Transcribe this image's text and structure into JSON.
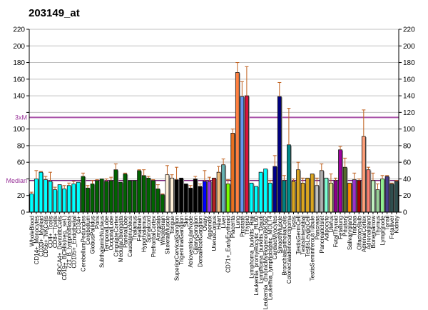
{
  "chart_data": {
    "type": "bar",
    "title": "203149_at",
    "ylim": [
      0,
      220
    ],
    "yticks": [
      0,
      20,
      40,
      60,
      80,
      100,
      120,
      140,
      160,
      180,
      200,
      220
    ],
    "grid": true,
    "reference_lines": [
      {
        "label": "Median",
        "value": 38,
        "color": "#660066"
      },
      {
        "label": "3xM",
        "value": 114,
        "color": "#aa55aa"
      }
    ],
    "categories": [
      "WholeBlood",
      "CD14+_Monocytes",
      "CD33+_Myeloid",
      "CD56+_NKCells",
      "CD4+_Tcells",
      "CD8+_Tcells",
      "BDCA4+_DentriticCells",
      "CD19+_BCells(neg._sel.)",
      "721_B_lymphoblasts",
      "CD105+_Endothelial",
      "CD34+",
      "CerebellumPeduncles",
      "Cerebellum",
      "GlobusPallidus",
      "Pons",
      "SubthalamicNucleus",
      "TemporalLobe",
      "OccipitalLobe",
      "CingulateCortex",
      "MedullaOblongata",
      "ParietalLobe",
      "Caudatenucleus",
      "Thalamus",
      "Fetalbrain",
      "Hypothalamus",
      "Spinalcord",
      "PrefrontalCortex",
      "Amygdala",
      "WholeBrain",
      "SkeletalMuscle",
      "Tongue",
      "SuperiorCervicalGanglion",
      "TrigeminalGanglion",
      "Skin",
      "AtrioventricularNode",
      "CiliaryGanglion",
      "DorsalRootGanglion",
      "Ovary",
      "Appendix",
      "UterusCorpus",
      "Heart",
      "Liver",
      "CD71+_EarlyErythroid",
      "Placenta",
      "Lung",
      "Prostate",
      "Thyroid",
      "Lymphoma_burkitts_Raji",
      "Leukemia_promyelocytic_HL60",
      "Lymphoma_burkitts_Daudi",
      "Leukemia_chronicMyelogenousK562",
      "Leukemia_lymphoblastic_MOLT4",
      "CardiacMyocytes",
      "SmoothMuscle",
      "BronchialEpithelialCells",
      "Colorectaladenocarcinoma",
      "Testis",
      "TestisGermCell",
      "TestisInterstitial",
      "TestisLeydigCell",
      "TestisSeminiferousTubule",
      "Pancreas",
      "PancreaticIslet",
      "Adipocyte",
      "Uterus",
      "FetalThyroid",
      "Fetallung",
      "Pituitary",
      "Salivarygland",
      "Trachea",
      "OlfactoryBulb",
      "AdrenalCortex",
      "Adrenalgland",
      "Bonemarrow",
      "Thymus",
      "Lymphnode",
      "Tonsil",
      "Fetalliver",
      "Kidney"
    ],
    "values": [
      22,
      40,
      48,
      39,
      37,
      27,
      33,
      28,
      32,
      34,
      36,
      43,
      29,
      34,
      38,
      40,
      37,
      38,
      51,
      36,
      46,
      38,
      38,
      50,
      44,
      41,
      38,
      28,
      21,
      45,
      41,
      39,
      41,
      34,
      29,
      40,
      31,
      37,
      37,
      41,
      48,
      57,
      34,
      95,
      168,
      139,
      140,
      35,
      31,
      48,
      52,
      35,
      55,
      139,
      38,
      81,
      37,
      51,
      35,
      41,
      46,
      32,
      50,
      41,
      35,
      38,
      75,
      54,
      35,
      39,
      38,
      91,
      51,
      38,
      27,
      40,
      43,
      34,
      37
    ],
    "errors": [
      2,
      10,
      1,
      4,
      11,
      3,
      0,
      4,
      3,
      3,
      0,
      4,
      3,
      4,
      1,
      0,
      3,
      4,
      7,
      0,
      1,
      0,
      0,
      1,
      7,
      2,
      1,
      5,
      1,
      11,
      4,
      15,
      0,
      0,
      3,
      3,
      3,
      13,
      5,
      0,
      7,
      7,
      5,
      5,
      12,
      18,
      35,
      0,
      0,
      0,
      0,
      3,
      13,
      17,
      6,
      44,
      3,
      9,
      6,
      0,
      0,
      9,
      8,
      0,
      11,
      3,
      4,
      11,
      0,
      8,
      2,
      32,
      3,
      9,
      7,
      4,
      1,
      1,
      1
    ],
    "colors": [
      "#00ffff",
      "#00ffff",
      "#00ffff",
      "#00ffff",
      "#00ffff",
      "#00ffff",
      "#00ffff",
      "#00ffff",
      "#00ffff",
      "#00ffff",
      "#00ffff",
      "#006400",
      "#006400",
      "#006400",
      "#006400",
      "#006400",
      "#006400",
      "#006400",
      "#006400",
      "#006400",
      "#006400",
      "#006400",
      "#006400",
      "#006400",
      "#006400",
      "#006400",
      "#006400",
      "#006400",
      "#006400",
      "#fff0d8",
      "#fff0d8",
      "#000000",
      "#000000",
      "#000000",
      "#000000",
      "#000000",
      "#000000",
      "#0000ff",
      "#9932ee",
      "#b22222",
      "#f0c080",
      "#66b2b2",
      "#7cfc00",
      "#e87020",
      "#ff8040",
      "#6495ed",
      "#dc143c",
      "#00ffff",
      "#00ffff",
      "#00ffff",
      "#00ffff",
      "#00ffff",
      "#00008b",
      "#000080",
      "#008080",
      "#008b8b",
      "#daa520",
      "#daa520",
      "#daa520",
      "#daa520",
      "#daa520",
      "#c0c0c0",
      "#b0b0b0",
      "#7fffd4",
      "#e0e080",
      "#8b008b",
      "#a000a0",
      "#556b2f",
      "#ff8c00",
      "#9932cc",
      "#a00000",
      "#ffa07a",
      "#fa8072",
      "#c0f0c0",
      "#98d098",
      "#90ee90",
      "#483d8b",
      "#2f4f4f",
      "#2f4f4f"
    ]
  }
}
